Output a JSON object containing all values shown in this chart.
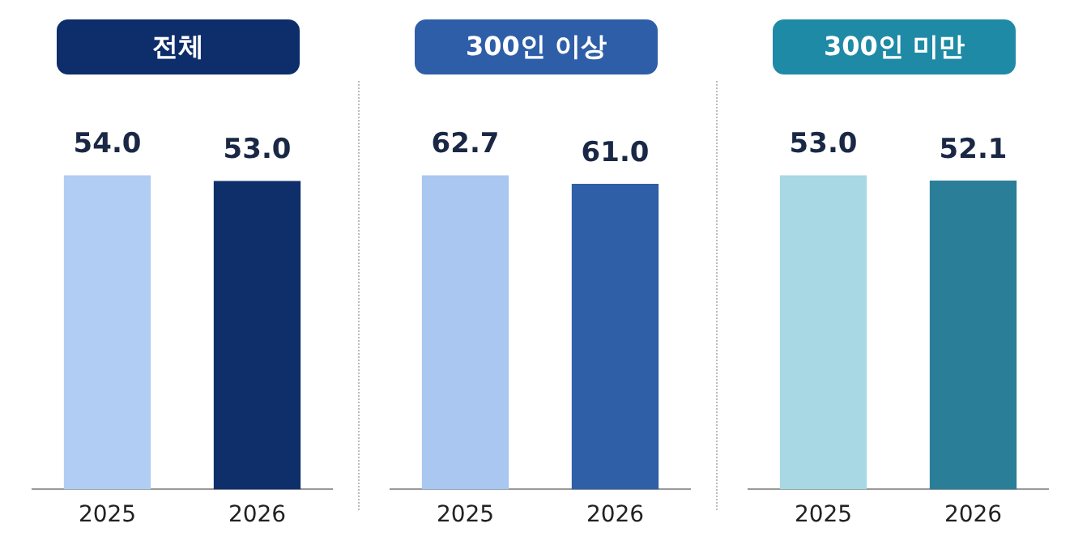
{
  "chart_data": [
    {
      "type": "bar",
      "title": "전체",
      "categories": [
        "2025",
        "2026"
      ],
      "values": [
        54.0,
        53.0
      ],
      "value_labels": [
        "54.0",
        "53.0"
      ],
      "colors": [
        "#b1cdf3",
        "#0f2f6b"
      ],
      "grid": false,
      "legend": false
    },
    {
      "type": "bar",
      "title": "300인 이상",
      "categories": [
        "2025",
        "2026"
      ],
      "values": [
        62.7,
        61.0
      ],
      "value_labels": [
        "62.7",
        "61.0"
      ],
      "colors": [
        "#a9c7f1",
        "#2f5fa6"
      ],
      "grid": false,
      "legend": false
    },
    {
      "type": "bar",
      "title": "300인 미만",
      "categories": [
        "2025",
        "2026"
      ],
      "values": [
        53.0,
        52.1
      ],
      "value_labels": [
        "53.0",
        "52.1"
      ],
      "colors": [
        "#a7d8e4",
        "#2a7e98"
      ],
      "grid": false,
      "legend": false
    }
  ]
}
